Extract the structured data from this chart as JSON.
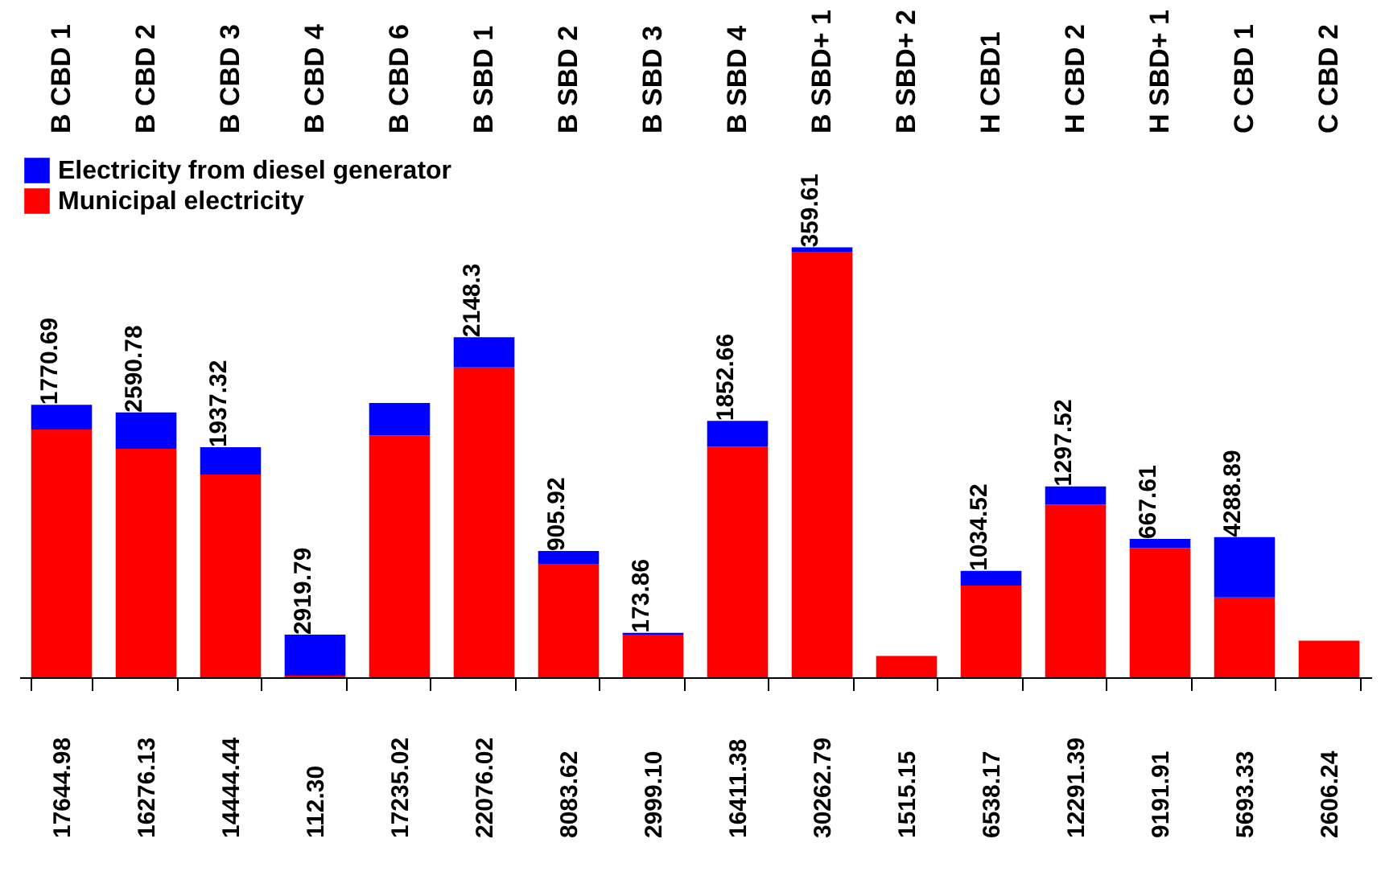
{
  "chart_data": {
    "type": "bar",
    "stacked": true,
    "legend": "top left",
    "grid": false,
    "categories": [
      "B CBD 1",
      "B CBD 2",
      "B CBD 3",
      "B CBD 4",
      "B CBD 6",
      "B SBD 1",
      "B SBD 2",
      "B SBD 3",
      "B SBD 4",
      "B SBD+ 1",
      "B SBD+ 2",
      "H CBD1",
      "H CBD 2",
      "H SBD+ 1",
      "C CBD 1",
      "C CBD 2"
    ],
    "series": [
      {
        "name": "Municipal electricity",
        "color": "#ff0000",
        "values": [
          17644.98,
          16276.13,
          14444.44,
          112.3,
          17235.02,
          22076.02,
          8083.62,
          2999.1,
          16411.38,
          30262.79,
          1515.15,
          6538.17,
          12291.39,
          9191.91,
          5693.33,
          2606.24
        ],
        "value_labels": [
          "17644.98",
          "16276.13",
          "14444.44",
          "112.30",
          "17235.02",
          "22076.02",
          "8083.62",
          "2999.10",
          "16411.38",
          "30262.79",
          "1515.15",
          "6538.17",
          "12291.39",
          "9191.91",
          "5693.33",
          "2606.24"
        ]
      },
      {
        "name": "Electricity from diesel generator",
        "color": "#0000ff",
        "values": [
          1770.69,
          2590.78,
          1937.32,
          2919.79,
          2300,
          2148.3,
          905.92,
          173.86,
          1852.66,
          359.61,
          null,
          1034.52,
          1297.52,
          667.61,
          4288.89,
          null
        ],
        "value_labels": [
          "1770.69",
          "2590.78",
          "1937.32",
          "2919.79",
          null,
          "2148.3",
          "905.92",
          "173.86",
          "1852.66",
          "359.61",
          null,
          "1034.52",
          "1297.52",
          "667.61",
          "4288.89",
          null
        ]
      }
    ]
  }
}
